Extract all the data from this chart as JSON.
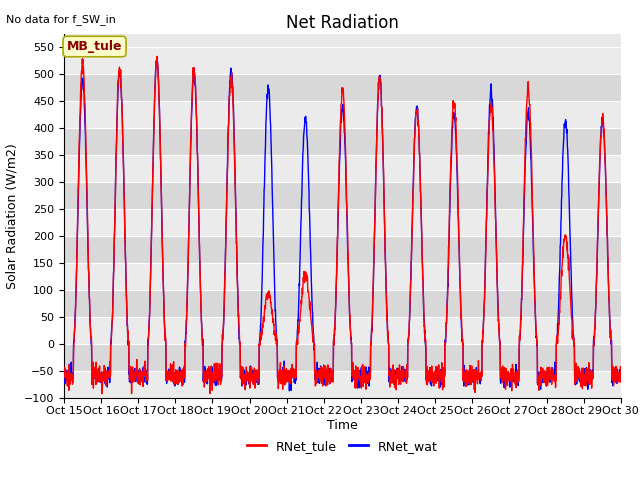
{
  "title": "Net Radiation",
  "top_left_text": "No data for f_SW_in",
  "ylabel": "Solar Radiation (W/m2)",
  "xlabel": "Time",
  "ylim": [
    -100,
    575
  ],
  "yticks": [
    -100,
    -50,
    0,
    50,
    100,
    150,
    200,
    250,
    300,
    350,
    400,
    450,
    500,
    550
  ],
  "xtick_labels": [
    "Oct 15",
    "Oct 16",
    "Oct 17",
    "Oct 18",
    "Oct 19",
    "Oct 20",
    "Oct 21",
    "Oct 22",
    "Oct 23",
    "Oct 24",
    "Oct 25",
    "Oct 26",
    "Oct 27",
    "Oct 28",
    "Oct 29",
    "Oct 30"
  ],
  "legend_entries": [
    "RNet_tule",
    "RNet_wat"
  ],
  "line_red": "red",
  "line_blue": "blue",
  "bg_color": "#e8e8e8",
  "bg_band_light": "#ebebeb",
  "bg_band_dark": "#d8d8d8",
  "annotation_box": "MB_tule",
  "annotation_box_color": "#ffffcc",
  "annotation_box_border": "#aaa800",
  "title_fontsize": 12,
  "label_fontsize": 9,
  "tick_fontsize": 8
}
